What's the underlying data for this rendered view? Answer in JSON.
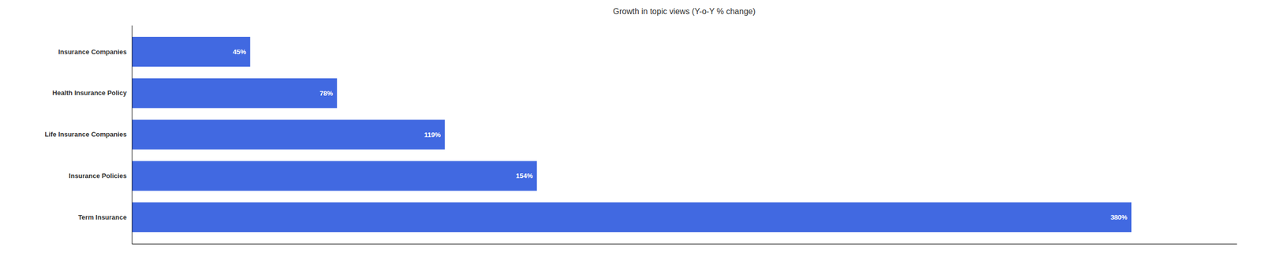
{
  "chart_data": {
    "type": "bar",
    "orientation": "horizontal",
    "title": "Growth in topic views (Y-o-Y % change)",
    "categories": [
      "Insurance Companies",
      "Health Insurance Policy",
      "Life Insurance Companies",
      "Insurance Policies",
      "Term Insurance"
    ],
    "values": [
      45,
      78,
      119,
      154,
      380
    ],
    "value_labels": [
      "45%",
      "78%",
      "119%",
      "154%",
      "380%"
    ],
    "color": "#4169E1",
    "xlim": [
      0,
      420
    ],
    "data_labels": true,
    "tick_labels": "y"
  }
}
